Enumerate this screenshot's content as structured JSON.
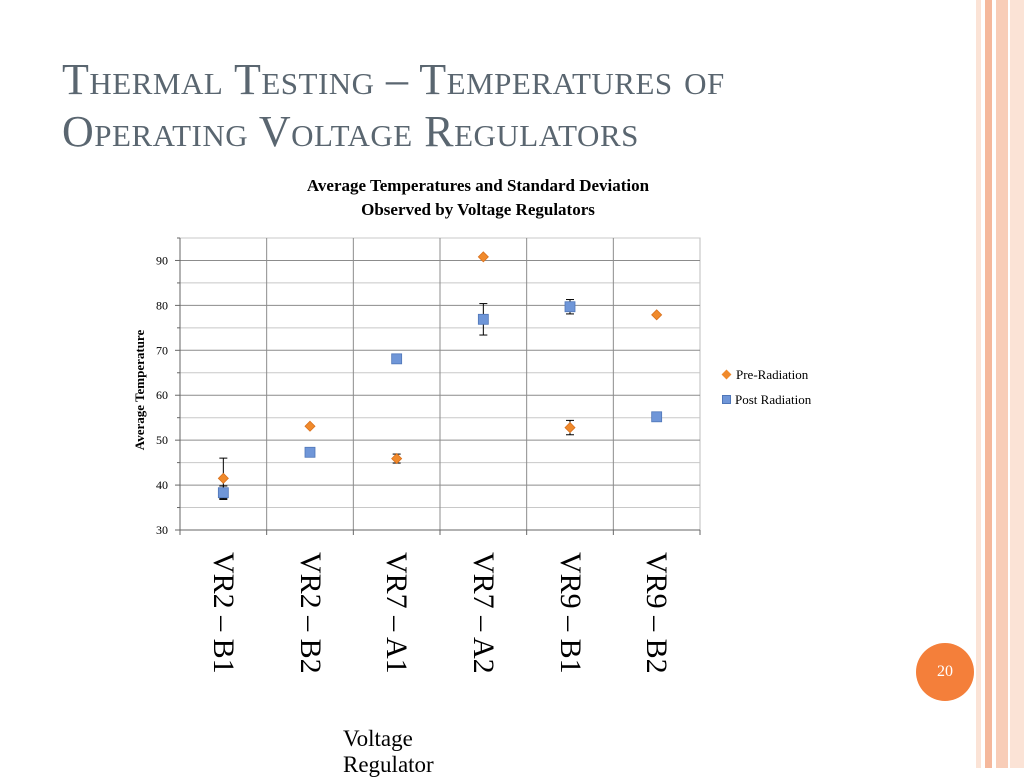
{
  "slide": {
    "title_line1": "Thermal Testing – Temperatures of",
    "title_line2": "Operating Voltage Regulators",
    "page_number": "20"
  },
  "colors": {
    "title": "#5a6670",
    "pre_radiation": "#f08a2c",
    "post_radiation": "#6f96d8",
    "badge": "#f47f3a",
    "border_stripes": [
      "#f9d9c8",
      "#f2a98a",
      "#f9d9c8"
    ]
  },
  "chart_data": {
    "type": "scatter",
    "title_line1": "Average Temperatures and Standard Deviation",
    "title_line2": "Observed by Voltage Regulators",
    "ylabel": "Average Temperature",
    "xlabel": "Voltage Regulator",
    "ylim": [
      30,
      95
    ],
    "yticks": [
      "30",
      "40",
      "50",
      "60",
      "70",
      "80",
      "90"
    ],
    "grid": true,
    "legend_position": "right",
    "categories": [
      "VR2 – B1",
      "VR2 – B2",
      "VR7 – A1",
      "VR7 – A2",
      "VR9 – B1",
      "VR9 – B2"
    ],
    "series": [
      {
        "name": "Pre-Radiation",
        "marker": "diamond",
        "values": [
          41.5,
          53.1,
          45.9,
          90.8,
          52.8,
          77.9
        ],
        "errors": [
          4.5,
          0,
          1.0,
          0,
          1.6,
          0
        ]
      },
      {
        "name": "Post Radiation",
        "marker": "square",
        "values": [
          38.3,
          47.3,
          68.1,
          76.9,
          79.7,
          55.2
        ],
        "errors": [
          1.5,
          0,
          0,
          3.5,
          1.6,
          0
        ]
      }
    ]
  }
}
